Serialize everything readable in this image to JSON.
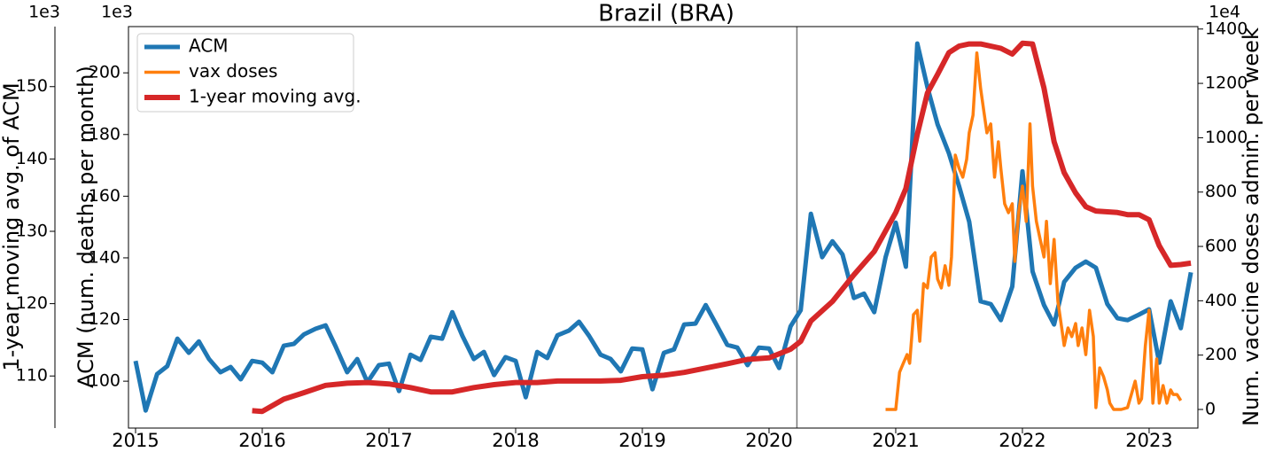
{
  "chart_data": {
    "type": "line",
    "title": "Brazil (BRA)",
    "ylabel": "ACM (num. deaths per month)",
    "y2label": "Num. vaccine doses admin. per week",
    "y3label": "1-year moving avg. of ACM",
    "y_offset": "1e3",
    "y2_offset": "1e4",
    "y3_offset": "1e3",
    "xlim": [
      2014.944,
      2023.385
    ],
    "xticks": [
      2015,
      2016,
      2017,
      2018,
      2019,
      2020,
      2021,
      2022,
      2023
    ],
    "ylim": [
      84.8,
      215
    ],
    "yticks": [
      100,
      120,
      140,
      160,
      180,
      200
    ],
    "y2lim": [
      -68.5,
      1409
    ],
    "y2ticks": [
      0,
      200,
      400,
      600,
      800,
      1000,
      1200,
      1400
    ],
    "y3lim": [
      102.8,
      158.3
    ],
    "y3ticks": [
      110,
      120,
      130,
      140,
      150
    ],
    "vline": 2020.22,
    "legend": "upper left",
    "series": [
      {
        "name": "ACM",
        "color": "#1f77b4",
        "axis": "y",
        "x": [
          2015.0,
          2015.08,
          2015.17,
          2015.25,
          2015.33,
          2015.42,
          2015.5,
          2015.58,
          2015.67,
          2015.75,
          2015.83,
          2015.92,
          2016.0,
          2016.08,
          2016.17,
          2016.25,
          2016.33,
          2016.42,
          2016.5,
          2016.58,
          2016.67,
          2016.75,
          2016.83,
          2016.92,
          2017.0,
          2017.08,
          2017.17,
          2017.25,
          2017.33,
          2017.42,
          2017.5,
          2017.58,
          2017.67,
          2017.75,
          2017.83,
          2017.92,
          2018.0,
          2018.08,
          2018.17,
          2018.25,
          2018.33,
          2018.42,
          2018.5,
          2018.58,
          2018.67,
          2018.75,
          2018.83,
          2018.92,
          2019.0,
          2019.08,
          2019.17,
          2019.25,
          2019.33,
          2019.42,
          2019.5,
          2019.58,
          2019.67,
          2019.75,
          2019.83,
          2019.92,
          2020.0,
          2020.08,
          2020.17,
          2020.25,
          2020.33,
          2020.42,
          2020.5,
          2020.58,
          2020.67,
          2020.75,
          2020.83,
          2020.92,
          2021.0,
          2021.08,
          2021.17,
          2021.25,
          2021.33,
          2021.42,
          2021.5,
          2021.58,
          2021.67,
          2021.75,
          2021.83,
          2021.92,
          2022.0,
          2022.08,
          2022.17,
          2022.25,
          2022.33,
          2022.42,
          2022.5,
          2022.58,
          2022.67,
          2022.75,
          2022.83,
          2022.92,
          2023.0,
          2023.08,
          2023.17,
          2023.25,
          2023.33
        ],
        "values": [
          106.6,
          90.5,
          102.3,
          104.9,
          113.8,
          109.2,
          112.9,
          107.2,
          102.9,
          104.6,
          100.6,
          106.6,
          106.0,
          102.9,
          111.5,
          112.1,
          115.2,
          117.0,
          118.1,
          111.2,
          102.9,
          107.2,
          99.7,
          105.2,
          105.7,
          96.8,
          108.6,
          106.9,
          114.4,
          113.8,
          122.4,
          114.7,
          107.2,
          109.5,
          102.0,
          107.8,
          106.6,
          94.8,
          109.5,
          107.5,
          114.9,
          116.4,
          119.3,
          114.7,
          108.6,
          107.2,
          103.2,
          110.6,
          110.3,
          97.4,
          109.2,
          110.3,
          118.4,
          118.7,
          124.7,
          118.7,
          111.8,
          110.9,
          105.2,
          110.9,
          110.6,
          104.3,
          117.8,
          123.0,
          154.3,
          140.2,
          145.4,
          141.1,
          127.0,
          128.4,
          122.4,
          140.2,
          151.4,
          137.1,
          209.5,
          195.4,
          183.3,
          173.9,
          163.2,
          151.7,
          125.9,
          125.0,
          119.8,
          130.7,
          168.1,
          135.6,
          124.7,
          118.4,
          132.2,
          136.8,
          138.8,
          136.8,
          125.0,
          120.4,
          119.8,
          121.6,
          123.3,
          106.0,
          125.9,
          117.2,
          135.3
        ]
      },
      {
        "name": "vax doses",
        "color": "#ff7f0e",
        "axis": "y2",
        "x": [
          2020.92,
          2021.0,
          2021.03,
          2021.06,
          2021.09,
          2021.11,
          2021.14,
          2021.17,
          2021.19,
          2021.22,
          2021.25,
          2021.28,
          2021.31,
          2021.33,
          2021.36,
          2021.39,
          2021.42,
          2021.44,
          2021.47,
          2021.5,
          2021.53,
          2021.56,
          2021.58,
          2021.61,
          2021.64,
          2021.67,
          2021.69,
          2021.72,
          2021.75,
          2021.78,
          2021.81,
          2021.83,
          2021.86,
          2021.89,
          2021.92,
          2021.94,
          2021.97,
          2022.0,
          2022.03,
          2022.06,
          2022.08,
          2022.11,
          2022.14,
          2022.17,
          2022.19,
          2022.22,
          2022.25,
          2022.28,
          2022.31,
          2022.33,
          2022.36,
          2022.39,
          2022.42,
          2022.44,
          2022.47,
          2022.5,
          2022.53,
          2022.56,
          2022.58,
          2022.61,
          2022.64,
          2022.67,
          2022.69,
          2022.72,
          2022.78,
          2022.83,
          2022.86,
          2022.89,
          2022.92,
          2022.94,
          2022.97,
          2023.0,
          2023.03,
          2023.06,
          2023.08,
          2023.11,
          2023.14,
          2023.17,
          2023.19,
          2023.22,
          2023.25
        ],
        "values": [
          0,
          0,
          137,
          170,
          202,
          170,
          349,
          365,
          251,
          463,
          447,
          561,
          577,
          480,
          447,
          529,
          457,
          561,
          936,
          887,
          855,
          920,
          1018,
          1083,
          1312,
          1181,
          1116,
          1018,
          1051,
          855,
          985,
          887,
          757,
          724,
          757,
          545,
          724,
          822,
          692,
          1051,
          822,
          692,
          626,
          561,
          692,
          463,
          626,
          398,
          300,
          235,
          300,
          268,
          316,
          235,
          300,
          202,
          365,
          268,
          7,
          153,
          121,
          72,
          23,
          0,
          0,
          7,
          55,
          104,
          23,
          39,
          235,
          365,
          23,
          186,
          23,
          88,
          23,
          72,
          55,
          55,
          33
        ]
      },
      {
        "name": "1-year moving avg.",
        "color": "#d62728",
        "axis": "y3",
        "x": [
          2015.92,
          2016.0,
          2016.17,
          2016.33,
          2016.5,
          2016.67,
          2016.83,
          2017.0,
          2017.17,
          2017.33,
          2017.5,
          2017.67,
          2017.83,
          2018.0,
          2018.17,
          2018.33,
          2018.5,
          2018.67,
          2018.83,
          2019.0,
          2019.17,
          2019.33,
          2019.5,
          2019.67,
          2019.83,
          2020.0,
          2020.17,
          2020.25,
          2020.33,
          2020.5,
          2020.67,
          2020.83,
          2021.0,
          2021.08,
          2021.17,
          2021.25,
          2021.33,
          2021.42,
          2021.5,
          2021.58,
          2021.67,
          2021.83,
          2021.92,
          2022.0,
          2022.08,
          2022.17,
          2022.25,
          2022.33,
          2022.42,
          2022.5,
          2022.58,
          2022.75,
          2022.83,
          2022.92,
          2023.0,
          2023.08,
          2023.17,
          2023.25,
          2023.33
        ],
        "values": [
          105.2,
          105.1,
          106.8,
          107.7,
          108.7,
          109.0,
          109.1,
          108.9,
          108.4,
          107.8,
          107.8,
          108.4,
          108.8,
          109.1,
          109.1,
          109.3,
          109.3,
          109.3,
          109.4,
          109.9,
          110.1,
          110.5,
          111.1,
          111.7,
          112.3,
          112.5,
          113.7,
          114.8,
          117.6,
          120.3,
          124.0,
          127.2,
          132.6,
          135.9,
          143.4,
          149.1,
          151.7,
          154.7,
          155.6,
          155.9,
          155.9,
          155.3,
          154.5,
          156.0,
          155.9,
          149.8,
          142.4,
          138.1,
          135.3,
          133.4,
          132.8,
          132.6,
          132.3,
          132.3,
          131.6,
          128.0,
          125.3,
          125.4,
          125.6
        ]
      }
    ]
  }
}
